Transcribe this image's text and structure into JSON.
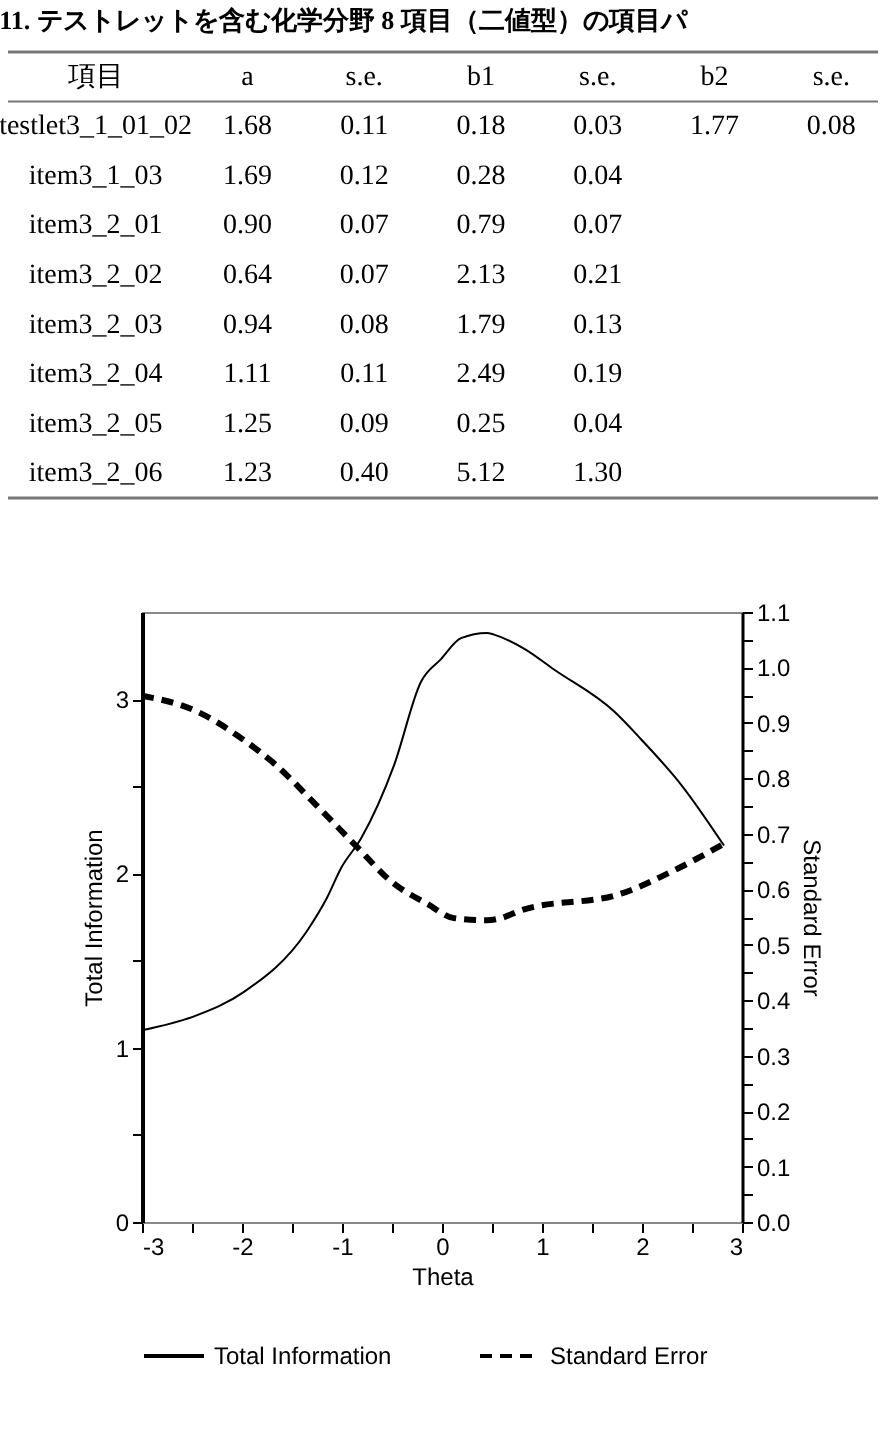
{
  "chart_data": [
    {
      "type": "other",
      "title": "11. テストレットを含む化学分野 8 項目（二値型）の項目パ",
      "ylabel": "項目",
      "categories": [
        "testlet3_1_01_02",
        "item3_1_03",
        "item3_2_01",
        "item3_2_02",
        "item3_2_03",
        "item3_2_04",
        "item3_2_05",
        "item3_2_06"
      ],
      "series": [
        {
          "name": "a",
          "values": [
            1.68,
            1.69,
            0.9,
            0.64,
            0.94,
            1.11,
            1.25,
            1.23
          ],
          "value_labels": [
            "1.68",
            "1.69",
            "0.90",
            "0.64",
            "0.94",
            "1.11",
            "1.25",
            "1.23"
          ]
        },
        {
          "name": "s.e.",
          "values": [
            0.11,
            0.12,
            0.07,
            0.07,
            0.08,
            0.11,
            0.09,
            0.4
          ],
          "value_labels": [
            "0.11",
            "0.12",
            "0.07",
            "0.07",
            "0.08",
            "0.11",
            "0.09",
            "0.40"
          ]
        },
        {
          "name": "b1",
          "values": [
            0.18,
            0.28,
            0.79,
            2.13,
            1.79,
            2.49,
            0.25,
            5.12
          ],
          "value_labels": [
            "0.18",
            "0.28",
            "0.79",
            "2.13",
            "1.79",
            "2.49",
            "0.25",
            "5.12"
          ]
        },
        {
          "name": "s.e.",
          "values": [
            0.03,
            0.04,
            0.07,
            0.21,
            0.13,
            0.19,
            0.04,
            1.3
          ],
          "value_labels": [
            "0.03",
            "0.04",
            "0.07",
            "0.21",
            "0.13",
            "0.19",
            "0.04",
            "1.30"
          ]
        },
        {
          "name": "b2",
          "values": [
            1.77,
            null,
            null,
            null,
            null,
            null,
            null,
            null
          ],
          "value_labels": [
            "1.77",
            null,
            null,
            null,
            null,
            null,
            null,
            null
          ]
        },
        {
          "name": "s.e.",
          "values": [
            0.08,
            null,
            null,
            null,
            null,
            null,
            null,
            null
          ],
          "value_labels": [
            "0.08",
            null,
            null,
            null,
            null,
            null,
            null,
            null
          ]
        }
      ]
    },
    {
      "type": "line",
      "xlabel": "Theta",
      "ylabel": "Total Information",
      "y2label": "Standard Error",
      "legend": "bottom",
      "grid": false,
      "xlim": [
        -3,
        3
      ],
      "xticks": [
        -3,
        {
          "value": -2.5,
          "label": null
        },
        -2,
        {
          "value": -1.5,
          "label": null
        },
        -1,
        {
          "value": -0.5,
          "label": null
        },
        0,
        {
          "value": 0.5,
          "label": null
        },
        1,
        {
          "value": 1.5,
          "label": null
        },
        2,
        {
          "value": 2.5,
          "label": null
        },
        3
      ],
      "ylim": [
        0,
        3.5
      ],
      "yticks": [
        0,
        {
          "value": 0.5,
          "label": null
        },
        1,
        {
          "value": 1.5,
          "label": null
        },
        2,
        {
          "value": 2.5,
          "label": null
        },
        3
      ],
      "y2lim": [
        0,
        1.1
      ],
      "y2ticks": [
        {
          "value": 0,
          "label": "0.0"
        },
        {
          "value": 0.05,
          "label": null
        },
        0.1,
        {
          "value": 0.15,
          "label": null
        },
        0.2,
        {
          "value": 0.25,
          "label": null
        },
        0.3,
        {
          "value": 0.35,
          "label": null
        },
        0.4,
        {
          "value": 0.45,
          "label": null
        },
        0.5,
        {
          "value": 0.55,
          "label": null
        },
        0.6,
        {
          "value": 0.65,
          "label": null
        },
        0.7,
        {
          "value": 0.75,
          "label": null
        },
        0.8,
        {
          "value": 0.85,
          "label": null
        },
        0.9,
        {
          "value": 0.95,
          "label": null
        },
        {
          "value": 1,
          "label": "1.0"
        },
        {
          "value": 1.05,
          "label": null
        },
        1.1
      ],
      "series": [
        {
          "name": "Total Information",
          "color": "#000000",
          "line_style": "solid",
          "x": [
            -3,
            -2.48,
            -1.98,
            -1.35,
            -1.15,
            -1.01,
            -0.81,
            -0.48,
            -0.21,
            -0.01,
            0.19,
            0.45,
            0.52,
            0.82,
            1.12,
            1.72,
            1.99,
            2.39,
            2.82
          ],
          "values": [
            1.1,
            1.18,
            1.32,
            1.67,
            1.86,
            2.03,
            2.2,
            2.62,
            3.1,
            3.23,
            3.35,
            3.38,
            3.37,
            3.29,
            3.17,
            2.93,
            2.77,
            2.51,
            2.16
          ]
        },
        {
          "name": "Standard Error",
          "color": "#000000",
          "line_style": "dashed",
          "axis": "y2",
          "x": [
            -3,
            -2.48,
            -1.98,
            -1.68,
            -1.21,
            -0.88,
            -0.48,
            -0.15,
            0.12,
            0.45,
            0.59,
            0.79,
            1.79,
            2.32,
            2.82
          ],
          "values": [
            0.949,
            0.923,
            0.869,
            0.827,
            0.743,
            0.682,
            0.61,
            0.574,
            0.548,
            0.544,
            0.548,
            0.562,
            0.592,
            0.634,
            0.682
          ]
        }
      ]
    }
  ]
}
